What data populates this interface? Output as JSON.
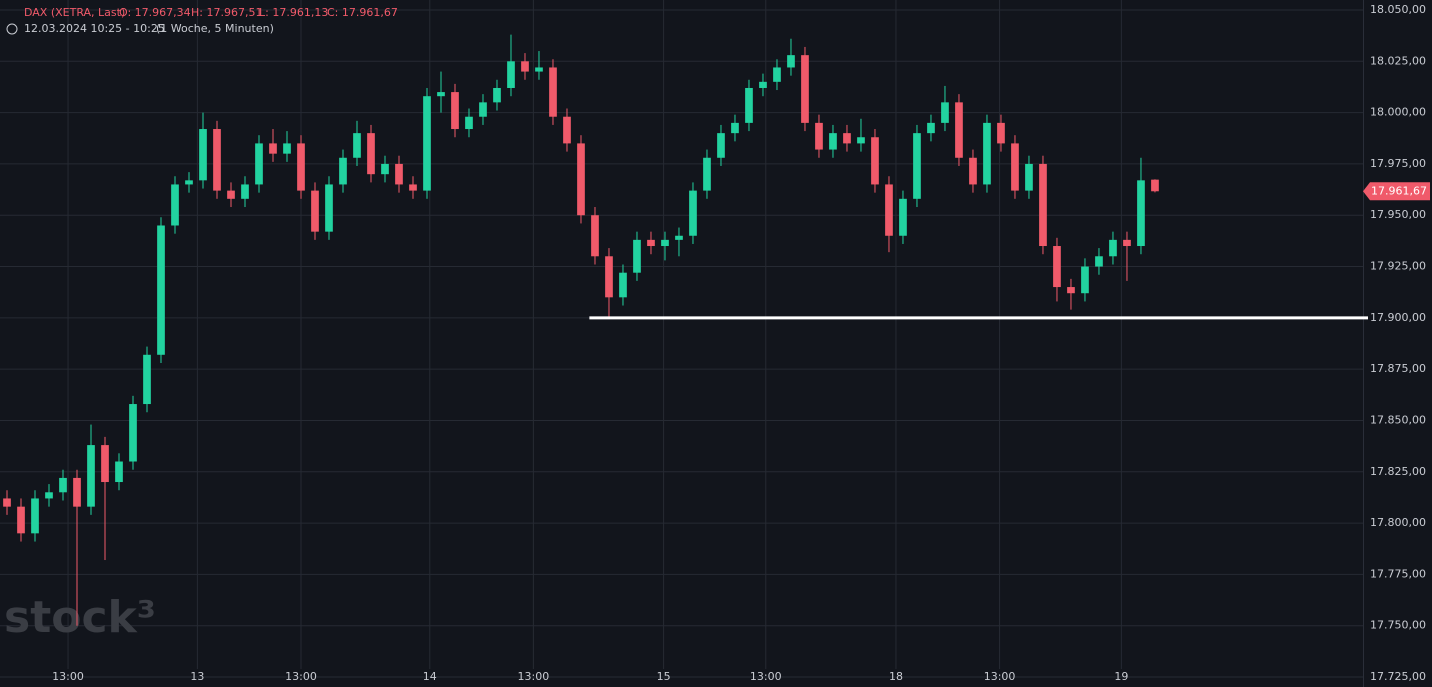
{
  "chart_data": {
    "type": "candlestick",
    "header": {
      "symbol": "DAX (XETRA, Last)",
      "open": "O: 17.967,34",
      "high": "H: 17.967,51",
      "low": "L: 17.961,13",
      "close": "C: 17.961,67",
      "range": "12.03.2024 10:25 - 10:25",
      "interval": "(1 Woche, 5 Minuten)"
    },
    "watermark": "stock³",
    "up_color": "#22d3a0",
    "down_color": "#f05a6a",
    "grid": true,
    "open": [
      17812,
      17808,
      17795,
      17812,
      17815,
      17822,
      17808,
      17838,
      17820,
      17830,
      17858,
      17882,
      17945,
      17965,
      17967,
      17992,
      17962,
      17958,
      17965,
      17985,
      17980,
      17985,
      17962,
      17942,
      17965,
      17978,
      17990,
      17970,
      17975,
      17965,
      17962,
      18008,
      18010,
      17992,
      17998,
      18005,
      18012,
      18025,
      18020,
      18022,
      17998,
      17985,
      17950,
      17930,
      17910,
      17922,
      17938,
      17935,
      17938,
      17940,
      17962,
      17978,
      17990,
      17995,
      18012,
      18015,
      18022,
      18028,
      17995,
      17982,
      17990,
      17985,
      17988,
      17965,
      17940,
      17958,
      17990,
      17995,
      18005,
      17978,
      17965,
      17995,
      17985,
      17962,
      17975,
      17935,
      17915,
      17912,
      17925,
      17930,
      17938,
      17935,
      17967.34
    ],
    "high": [
      17816,
      17812,
      17816,
      17819,
      17826,
      17826,
      17848,
      17842,
      17834,
      17862,
      17886,
      17949,
      17969,
      17971,
      18000,
      17996,
      17966,
      17969,
      17989,
      17992,
      17991,
      17989,
      17966,
      17969,
      17982,
      17996,
      17994,
      17979,
      17979,
      17969,
      18012,
      18020,
      18014,
      18002,
      18009,
      18016,
      18038,
      18029,
      18030,
      18026,
      18002,
      17989,
      17954,
      17934,
      17926,
      17942,
      17942,
      17942,
      17944,
      17966,
      17982,
      17994,
      17999,
      18016,
      18019,
      18026,
      18036,
      18032,
      17999,
      17994,
      17994,
      17997,
      17992,
      17969,
      17962,
      17994,
      17999,
      18013,
      18009,
      17982,
      17999,
      17999,
      17989,
      17979,
      17979,
      17939,
      17919,
      17929,
      17934,
      17942,
      17942,
      17978,
      17967.51
    ],
    "low": [
      17804,
      17791,
      17791,
      17808,
      17811,
      17750,
      17804,
      17782,
      17816,
      17826,
      17854,
      17878,
      17941,
      17961,
      17963,
      17958,
      17954,
      17954,
      17961,
      17976,
      17976,
      17958,
      17938,
      17938,
      17961,
      17974,
      17966,
      17966,
      17961,
      17958,
      17958,
      18000,
      17988,
      17988,
      17994,
      18001,
      18008,
      18016,
      18016,
      17994,
      17981,
      17946,
      17926,
      17900,
      17906,
      17918,
      17931,
      17928,
      17930,
      17936,
      17958,
      17974,
      17986,
      17991,
      18008,
      18011,
      18018,
      17991,
      17978,
      17978,
      17981,
      17981,
      17961,
      17932,
      17936,
      17954,
      17986,
      17991,
      17974,
      17961,
      17961,
      17981,
      17958,
      17958,
      17931,
      17908,
      17904,
      17908,
      17921,
      17926,
      17918,
      17931,
      17961.13
    ],
    "close": [
      17808,
      17795,
      17812,
      17815,
      17822,
      17808,
      17838,
      17820,
      17830,
      17858,
      17882,
      17945,
      17965,
      17967,
      17992,
      17962,
      17958,
      17965,
      17985,
      17980,
      17985,
      17962,
      17942,
      17965,
      17978,
      17990,
      17970,
      17975,
      17965,
      17962,
      18008,
      18010,
      17992,
      17998,
      18005,
      18012,
      18025,
      18020,
      18022,
      17998,
      17985,
      17950,
      17930,
      17910,
      17922,
      17938,
      17935,
      17938,
      17940,
      17962,
      17978,
      17990,
      17995,
      18012,
      18015,
      18022,
      18028,
      17995,
      17982,
      17990,
      17985,
      17988,
      17965,
      17940,
      17958,
      17990,
      17995,
      18005,
      17978,
      17965,
      17995,
      17985,
      17962,
      17975,
      17935,
      17915,
      17912,
      17925,
      17930,
      17938,
      17935,
      17967,
      17961.67
    ],
    "last_price_label": "17.961,67",
    "support_line": {
      "value": 17900,
      "x_start": 41.6
    },
    "xlim": [
      -0.5,
      96.86
    ],
    "xticks": [
      {
        "value": 4.36,
        "label": "13:00"
      },
      {
        "value": 13.6,
        "label": "13"
      },
      {
        "value": 21,
        "label": "13:00"
      },
      {
        "value": 30.2,
        "label": "14"
      },
      {
        "value": 37.6,
        "label": "13:00"
      },
      {
        "value": 46.9,
        "label": "15"
      },
      {
        "value": 54.2,
        "label": "13:00"
      },
      {
        "value": 63.5,
        "label": "18"
      },
      {
        "value": 70.9,
        "label": "13:00"
      },
      {
        "value": 79.6,
        "label": "19"
      }
    ],
    "ylim": [
      17725,
      18050
    ],
    "yticks": [
      {
        "value": 17725,
        "label": "17.725,00"
      },
      {
        "value": 17750,
        "label": "17.750,00"
      },
      {
        "value": 17775,
        "label": "17.775,00"
      },
      {
        "value": 17800,
        "label": "17.800,00"
      },
      {
        "value": 17825,
        "label": "17.825,00"
      },
      {
        "value": 17850,
        "label": "17.850,00"
      },
      {
        "value": 17875,
        "label": "17.875,00"
      },
      {
        "value": 17900,
        "label": "17.900,00"
      },
      {
        "value": 17925,
        "label": "17.925,00"
      },
      {
        "value": 17950,
        "label": "17.950,00"
      },
      {
        "value": 17975,
        "label": "17.975,00"
      },
      {
        "value": 18000,
        "label": "18.000,00"
      },
      {
        "value": 18025,
        "label": "18.025,00"
      },
      {
        "value": 18050,
        "label": "18.050,00"
      }
    ]
  }
}
